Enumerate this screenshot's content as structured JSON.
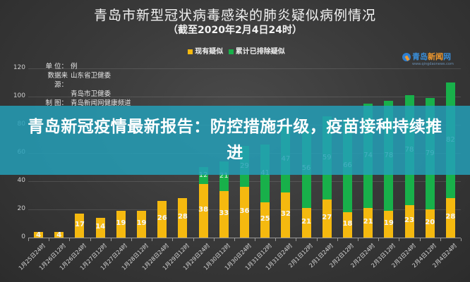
{
  "header": {
    "title": "青岛市新型冠状病毒感染的肺炎疑似病例情况",
    "subtitle": "（截至2020年2月4日24时）"
  },
  "legend": [
    {
      "label": "现有疑似",
      "color": "#f5b90f"
    },
    {
      "label": "累计已排除疑似",
      "color": "#18b04a"
    }
  ],
  "meta": {
    "unit_key": "单  位：",
    "unit_val": "例",
    "source_key": "数据来源：",
    "source_val1": "山东省卫健委",
    "source_val2": "青岛市卫健委",
    "maker_key": "制  图：",
    "maker_val": "青岛新闻网健康频道"
  },
  "logo": {
    "part1": "青岛",
    "part2": "新闻",
    "part3": "网",
    "sub": "www.qingdaonews.com"
  },
  "banner": {
    "text": "青岛新冠疫情最新报告：防控措施升级，疫苗接种持续推进"
  },
  "chart_data": {
    "type": "bar",
    "stacked": true,
    "title": "青岛市新型冠状病毒感染的肺炎疑似病例情况",
    "subtitle": "（截至2020年2月4日24时）",
    "xlabel": "",
    "ylabel": "例",
    "ylim": [
      0,
      120
    ],
    "yticks": [
      0,
      20,
      40,
      60,
      80,
      100,
      120
    ],
    "grid": true,
    "legend_position": "top",
    "categories": [
      "1月25日24时",
      "1月26日12时",
      "1月26日24时",
      "1月27日12时",
      "1月27日24时",
      "1月28日12时",
      "1月28日24时",
      "1月29日12时",
      "1月29日24时",
      "1月30日12时",
      "1月30日24时",
      "1月31日12时",
      "1月31日24时",
      "2月1日12时",
      "2月1日24时",
      "2月2日12时",
      "2月2日24时",
      "2月3日12时",
      "2月3日24时",
      "2月4日12时",
      "2月4日24时"
    ],
    "series": [
      {
        "name": "现有疑似",
        "color": "#f5b90f",
        "values": [
          4,
          4,
          17,
          14,
          19,
          19,
          26,
          28,
          38,
          33,
          36,
          25,
          32,
          21,
          27,
          18,
          21,
          19,
          23,
          20,
          28
        ]
      },
      {
        "name": "累计已排除疑似",
        "color": "#18b04a",
        "values": [
          0,
          0,
          0,
          0,
          0,
          0,
          0,
          0,
          12,
          21,
          29,
          41,
          47,
          56,
          59,
          66,
          74,
          78,
          78,
          79,
          82
        ]
      }
    ]
  }
}
